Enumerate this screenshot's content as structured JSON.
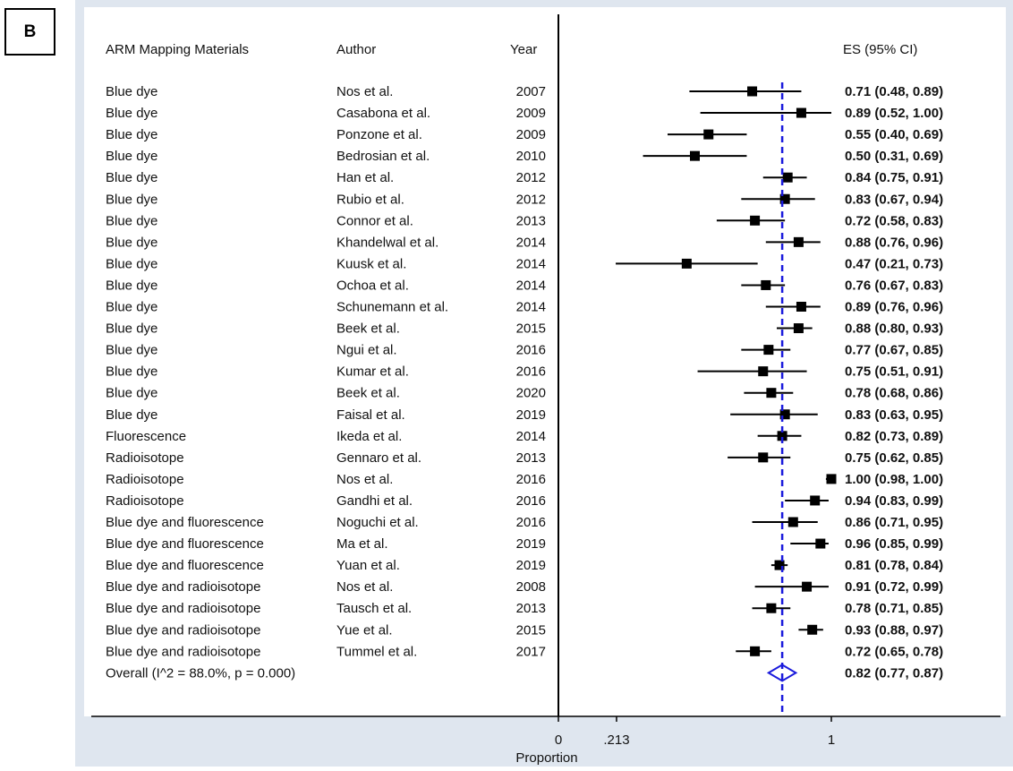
{
  "panel_label": "B",
  "chart_data": {
    "type": "forest",
    "columns": [
      "ARM Mapping Materials",
      "Author",
      "Year",
      "ES (95% CI)"
    ],
    "studies": [
      {
        "material": "Blue dye",
        "author": "Nos et al.",
        "year": "2007",
        "es": 0.71,
        "lo": 0.48,
        "hi": 0.89,
        "label": "0.71 (0.48, 0.89)"
      },
      {
        "material": "Blue dye",
        "author": "Casabona et al.",
        "year": "2009",
        "es": 0.89,
        "lo": 0.52,
        "hi": 1.0,
        "label": "0.89 (0.52, 1.00)"
      },
      {
        "material": "Blue dye",
        "author": "Ponzone et al.",
        "year": "2009",
        "es": 0.55,
        "lo": 0.4,
        "hi": 0.69,
        "label": "0.55 (0.40, 0.69)"
      },
      {
        "material": "Blue dye",
        "author": "Bedrosian et al.",
        "year": "2010",
        "es": 0.5,
        "lo": 0.31,
        "hi": 0.69,
        "label": "0.50 (0.31, 0.69)"
      },
      {
        "material": "Blue dye",
        "author": "Han et al.",
        "year": "2012",
        "es": 0.84,
        "lo": 0.75,
        "hi": 0.91,
        "label": "0.84 (0.75, 0.91)"
      },
      {
        "material": "Blue dye",
        "author": "Rubio et al.",
        "year": "2012",
        "es": 0.83,
        "lo": 0.67,
        "hi": 0.94,
        "label": "0.83 (0.67, 0.94)"
      },
      {
        "material": "Blue dye",
        "author": "Connor et al.",
        "year": "2013",
        "es": 0.72,
        "lo": 0.58,
        "hi": 0.83,
        "label": "0.72 (0.58, 0.83)"
      },
      {
        "material": "Blue dye",
        "author": "Khandelwal et al.",
        "year": "2014",
        "es": 0.88,
        "lo": 0.76,
        "hi": 0.96,
        "label": "0.88 (0.76, 0.96)"
      },
      {
        "material": "Blue dye",
        "author": "Kuusk et al.",
        "year": "2014",
        "es": 0.47,
        "lo": 0.21,
        "hi": 0.73,
        "label": "0.47 (0.21, 0.73)"
      },
      {
        "material": "Blue dye",
        "author": "Ochoa et al.",
        "year": "2014",
        "es": 0.76,
        "lo": 0.67,
        "hi": 0.83,
        "label": "0.76 (0.67, 0.83)"
      },
      {
        "material": "Blue dye",
        "author": "Schunemann et al.",
        "year": "2014",
        "es": 0.89,
        "lo": 0.76,
        "hi": 0.96,
        "label": "0.89 (0.76, 0.96)"
      },
      {
        "material": "Blue dye",
        "author": "Beek et al.",
        "year": "2015",
        "es": 0.88,
        "lo": 0.8,
        "hi": 0.93,
        "label": "0.88 (0.80, 0.93)"
      },
      {
        "material": "Blue dye",
        "author": "Ngui et al.",
        "year": "2016",
        "es": 0.77,
        "lo": 0.67,
        "hi": 0.85,
        "label": "0.77 (0.67, 0.85)"
      },
      {
        "material": "Blue dye",
        "author": "Kumar et al.",
        "year": "2016",
        "es": 0.75,
        "lo": 0.51,
        "hi": 0.91,
        "label": "0.75 (0.51, 0.91)"
      },
      {
        "material": "Blue dye",
        "author": "Beek et al.",
        "year": "2020",
        "es": 0.78,
        "lo": 0.68,
        "hi": 0.86,
        "label": "0.78 (0.68, 0.86)"
      },
      {
        "material": "Blue dye",
        "author": "Faisal et al.",
        "year": "2019",
        "es": 0.83,
        "lo": 0.63,
        "hi": 0.95,
        "label": "0.83 (0.63, 0.95)"
      },
      {
        "material": "Fluorescence",
        "author": "Ikeda et al.",
        "year": "2014",
        "es": 0.82,
        "lo": 0.73,
        "hi": 0.89,
        "label": "0.82 (0.73, 0.89)"
      },
      {
        "material": "Radioisotope",
        "author": "Gennaro et al.",
        "year": "2013",
        "es": 0.75,
        "lo": 0.62,
        "hi": 0.85,
        "label": "0.75 (0.62, 0.85)"
      },
      {
        "material": "Radioisotope",
        "author": "Nos et al.",
        "year": "2016",
        "es": 1.0,
        "lo": 0.98,
        "hi": 1.0,
        "label": "1.00 (0.98, 1.00)"
      },
      {
        "material": "Radioisotope",
        "author": "Gandhi et al.",
        "year": "2016",
        "es": 0.94,
        "lo": 0.83,
        "hi": 0.99,
        "label": "0.94 (0.83, 0.99)"
      },
      {
        "material": "Blue dye and fluorescence",
        "author": "Noguchi et al.",
        "year": "2016",
        "es": 0.86,
        "lo": 0.71,
        "hi": 0.95,
        "label": "0.86 (0.71, 0.95)"
      },
      {
        "material": "Blue dye and fluorescence",
        "author": "Ma et al.",
        "year": "2019",
        "es": 0.96,
        "lo": 0.85,
        "hi": 0.99,
        "label": "0.96 (0.85, 0.99)"
      },
      {
        "material": "Blue dye and fluorescence",
        "author": "Yuan et al.",
        "year": "2019",
        "es": 0.81,
        "lo": 0.78,
        "hi": 0.84,
        "label": "0.81 (0.78, 0.84)"
      },
      {
        "material": "Blue dye and radioisotope",
        "author": "Nos et al.",
        "year": "2008",
        "es": 0.91,
        "lo": 0.72,
        "hi": 0.99,
        "label": "0.91 (0.72, 0.99)"
      },
      {
        "material": "Blue dye and radioisotope",
        "author": "Tausch et al.",
        "year": "2013",
        "es": 0.78,
        "lo": 0.71,
        "hi": 0.85,
        "label": "0.78 (0.71, 0.85)"
      },
      {
        "material": "Blue dye and radioisotope",
        "author": "Yue et al.",
        "year": "2015",
        "es": 0.93,
        "lo": 0.88,
        "hi": 0.97,
        "label": "0.93 (0.88, 0.97)"
      },
      {
        "material": "Blue dye and radioisotope",
        "author": "Tummel et al.",
        "year": "2017",
        "es": 0.72,
        "lo": 0.65,
        "hi": 0.78,
        "label": "0.72 (0.65, 0.78)"
      }
    ],
    "overall": {
      "label": "Overall  (I^2 = 88.0%, p = 0.000)",
      "es": 0.82,
      "lo": 0.77,
      "hi": 0.87,
      "es_label": "0.82 (0.77, 0.87)"
    },
    "x_ticks": [
      {
        "value": 0,
        "label": "0"
      },
      {
        "value": 0.213,
        "label": ".213"
      },
      {
        "value": 1,
        "label": "1"
      }
    ],
    "xlabel": "Proportion",
    "xlim": [
      0,
      1
    ],
    "null_line_value": 0,
    "colors": {
      "background": "#dfe6ef",
      "plot_bg": "#ffffff",
      "marker": "#000000",
      "overall": "#1a1adc",
      "text": "#111111"
    }
  }
}
